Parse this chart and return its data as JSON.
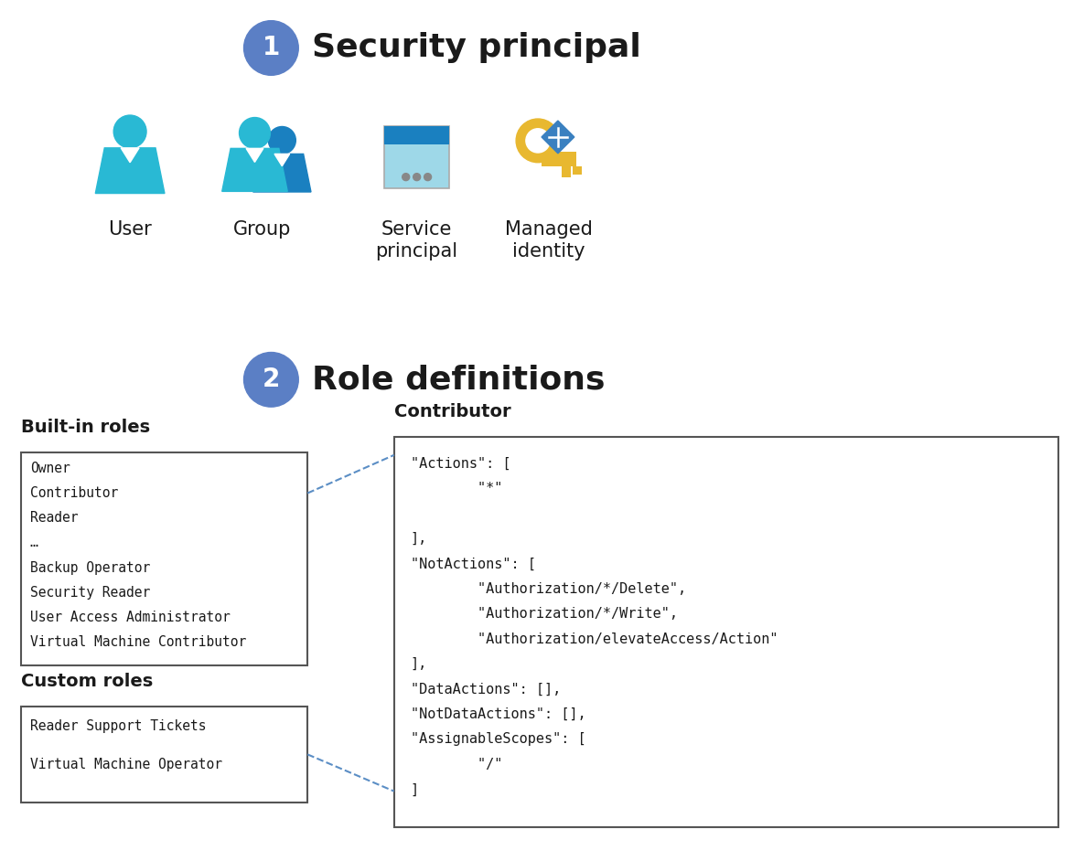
{
  "bg_color": "#ffffff",
  "title1_num": "1",
  "title1_text": "Security principal",
  "title2_num": "2",
  "title2_text": "Role definitions",
  "circle_color": "#5b7fc5",
  "circle_text_color": "#ffffff",
  "icon_labels": [
    "User",
    "Group",
    "Service\nprincipal",
    "Managed\nidentity"
  ],
  "builtin_title": "Built-in roles",
  "builtin_items": [
    "Owner",
    "Contributor",
    "Reader",
    "…",
    "Backup Operator",
    "Security Reader",
    "User Access Administrator",
    "Virtual Machine Contributor"
  ],
  "custom_title": "Custom roles",
  "custom_items": [
    "Reader Support Tickets",
    "Virtual Machine Operator"
  ],
  "contributor_title": "Contributor",
  "code_lines": [
    "\"Actions\": [",
    "        \"*\"",
    "",
    "],",
    "\"NotActions\": [",
    "        \"Authorization/*/Delete\",",
    "        \"Authorization/*/Write\",",
    "        \"Authorization/elevateAccess/Action\"",
    "],",
    "\"DataActions\": [],",
    "\"NotDataActions\": [],",
    "\"AssignableScopes\": [",
    "        \"/\"",
    "]"
  ],
  "dashed_line_color": "#5b8ec5",
  "font_mono": "DejaVu Sans Mono"
}
